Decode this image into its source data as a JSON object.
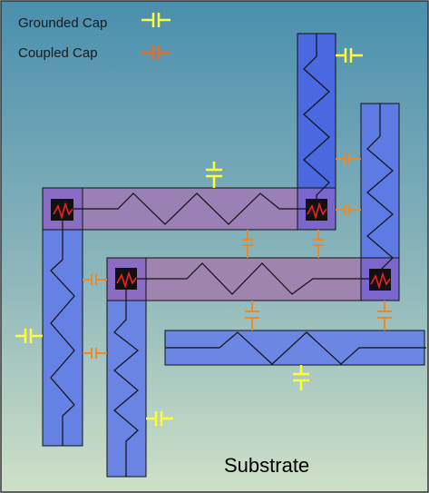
{
  "legend": {
    "grounded_label": "Grounded Cap",
    "coupled_label": "Coupled Cap"
  },
  "substrate_label": "Substrate",
  "colors": {
    "grounded_cap": "#ffff33",
    "coupled_cap": "#ee8822",
    "background_top": "#4a8fae",
    "background_bottom": "#cfe0c7",
    "vertical_wire": "#5b78e0",
    "horizontal_wire": "#9b80b2",
    "via": "#111111",
    "via_resistor": "#ee2222"
  }
}
